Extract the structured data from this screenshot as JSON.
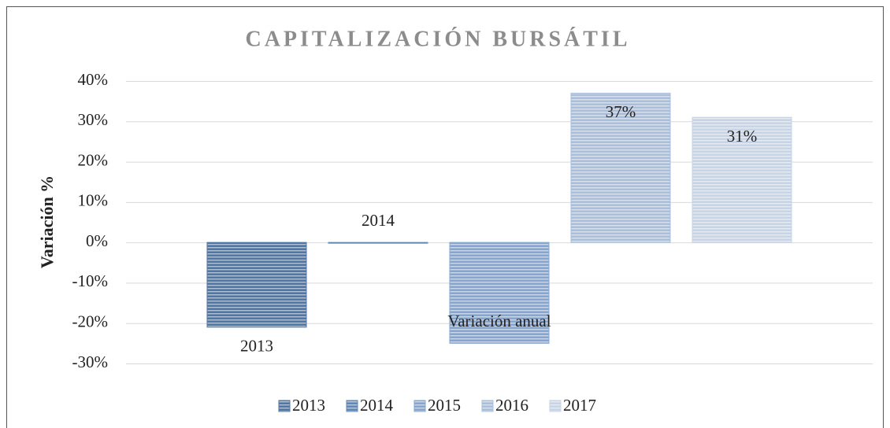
{
  "chart_data": {
    "type": "bar",
    "title": "CAPITALIZACIÓN BURSÁTIL",
    "y_label": "Variación %",
    "categories": [
      "Variación anual"
    ],
    "series": [
      {
        "name": "2013",
        "color": "#4f76a5",
        "values": [
          -21
        ]
      },
      {
        "name": "2014",
        "color": "#5f88b8",
        "values": [
          0
        ]
      },
      {
        "name": "2015",
        "color": "#86a6cf",
        "values": [
          -25
        ]
      },
      {
        "name": "2016",
        "color": "#a9bedb",
        "values": [
          37
        ],
        "value_labels": [
          "37%"
        ]
      },
      {
        "name": "2017",
        "color": "#c7d3e7",
        "values": [
          31
        ],
        "value_labels": [
          "31%"
        ]
      }
    ],
    "ylim": [
      -30,
      40
    ],
    "yticks": [
      {
        "value": -30,
        "label": "-30%"
      },
      {
        "value": -20,
        "label": "-20%"
      },
      {
        "value": -10,
        "label": "-10%"
      },
      {
        "value": 0,
        "label": "0%"
      },
      {
        "value": 10,
        "label": "10%"
      },
      {
        "value": 20,
        "label": "20%"
      },
      {
        "value": 30,
        "label": "30%"
      },
      {
        "value": 40,
        "label": "40%"
      }
    ],
    "grid": true,
    "legend": "bottom"
  }
}
